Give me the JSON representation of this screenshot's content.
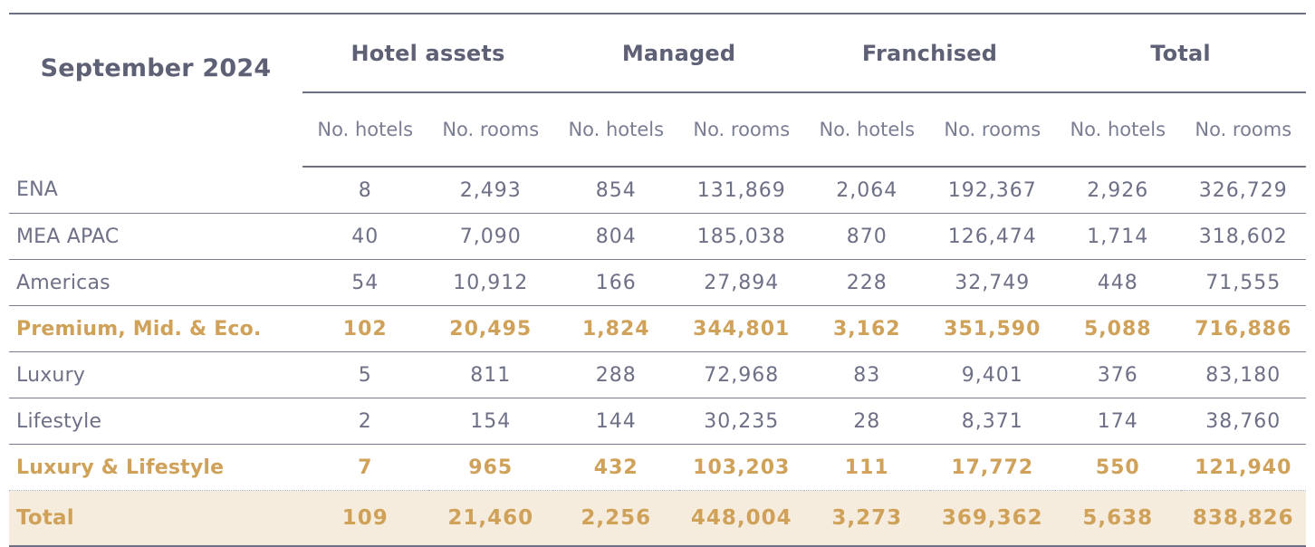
{
  "table": {
    "period_label": "September 2024",
    "column_groups": [
      {
        "label": "Hotel assets"
      },
      {
        "label": "Managed"
      },
      {
        "label": "Franchised"
      },
      {
        "label": "Total"
      }
    ],
    "sub_headers": [
      "No. hotels",
      "No. rooms",
      "No. hotels",
      "No. rooms",
      "No. hotels",
      "No. rooms",
      "No. hotels",
      "No. rooms"
    ],
    "rows": [
      {
        "label": "ENA",
        "style": "regular",
        "values": [
          "8",
          "2,493",
          "854",
          "131,869",
          "2,064",
          "192,367",
          "2,926",
          "326,729"
        ]
      },
      {
        "label": "MEA APAC",
        "style": "regular",
        "values": [
          "40",
          "7,090",
          "804",
          "185,038",
          "870",
          "126,474",
          "1,714",
          "318,602"
        ]
      },
      {
        "label": "Americas",
        "style": "regular",
        "values": [
          "54",
          "10,912",
          "166",
          "27,894",
          "228",
          "32,749",
          "448",
          "71,555"
        ]
      },
      {
        "label": "Premium, Mid. & Eco.",
        "style": "subtotal",
        "values": [
          "102",
          "20,495",
          "1,824",
          "344,801",
          "3,162",
          "351,590",
          "5,088",
          "716,886"
        ]
      },
      {
        "label": "Luxury",
        "style": "regular",
        "values": [
          "5",
          "811",
          "288",
          "72,968",
          "83",
          "9,401",
          "376",
          "83,180"
        ]
      },
      {
        "label": "Lifestyle",
        "style": "regular",
        "values": [
          "2",
          "154",
          "144",
          "30,235",
          "28",
          "8,371",
          "174",
          "38,760"
        ]
      },
      {
        "label": "Luxury & Lifestyle",
        "style": "subtotal",
        "values": [
          "7",
          "965",
          "432",
          "103,203",
          "111",
          "17,772",
          "550",
          "121,940"
        ]
      },
      {
        "label": "Total",
        "style": "total",
        "values": [
          "109",
          "21,460",
          "2,256",
          "448,004",
          "3,273",
          "369,362",
          "5,638",
          "838,826"
        ]
      }
    ],
    "colors": {
      "header_text": "#5e6176",
      "body_text": "#6d7086",
      "subheader_text": "#7a7e93",
      "accent_gold": "#cfa159",
      "total_row_background": "#f6ecde",
      "rule": "#6e7184"
    }
  }
}
